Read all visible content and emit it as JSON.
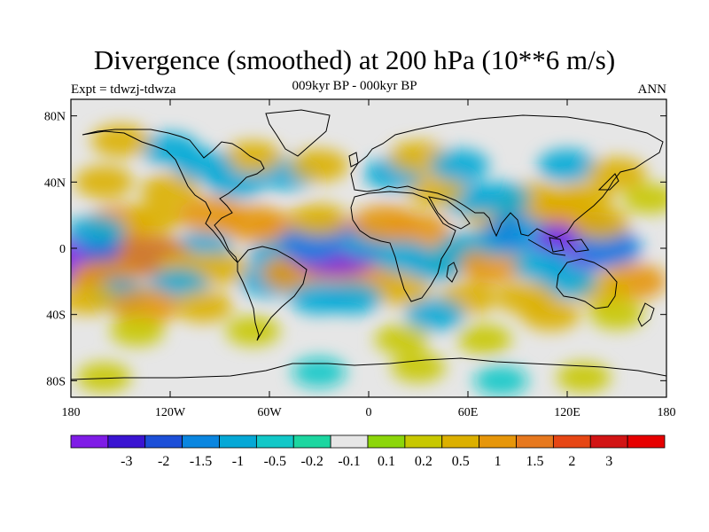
{
  "title": "Divergence (smoothed) at 200 hPa (10**6 m/s)",
  "left_string": "Expt = tdwzj-tdwza",
  "center_string": "009kyr BP - 000kyr BP",
  "right_string": "ANN",
  "map": {
    "projection": "cylindrical-equidistant",
    "lon_range": [
      -180,
      180
    ],
    "lat_range": [
      -90,
      90
    ],
    "background_color": "#e6e6e6",
    "lon_ticks": [
      {
        "value": -180,
        "label": "180"
      },
      {
        "value": -120,
        "label": "120W"
      },
      {
        "value": -60,
        "label": "60W"
      },
      {
        "value": 0,
        "label": "0"
      },
      {
        "value": 60,
        "label": "60E"
      },
      {
        "value": 120,
        "label": "120E"
      },
      {
        "value": 180,
        "label": "180"
      }
    ],
    "lat_ticks": [
      {
        "value": 80,
        "label": "80N"
      },
      {
        "value": 40,
        "label": "40N"
      },
      {
        "value": 0,
        "label": "0"
      },
      {
        "value": -40,
        "label": "40S"
      },
      {
        "value": -80,
        "label": "80S"
      }
    ]
  },
  "colorbar": {
    "colors": [
      "#7f1ce6",
      "#3a14d2",
      "#1c4fd8",
      "#0a86e0",
      "#05a8d6",
      "#12c8c8",
      "#1cd6a0",
      "#e6e6e6",
      "#8cd60a",
      "#c8c800",
      "#dcb000",
      "#e6960a",
      "#e6781e",
      "#e64614",
      "#d21414",
      "#e60000"
    ],
    "labels": [
      "-3",
      "-2",
      "-1.5",
      "-1",
      "-0.5",
      "-0.2",
      "-0.1",
      "0.1",
      "0.2",
      "0.5",
      "1",
      "1.5",
      "2",
      "3"
    ]
  },
  "features": [
    {
      "lon": -170,
      "lat": -8,
      "value": -3
    },
    {
      "lon": -150,
      "lat": -3,
      "value": -1.5
    },
    {
      "lon": -125,
      "lat": -5,
      "value": -1
    },
    {
      "lon": -100,
      "lat": 0,
      "value": -0.5
    },
    {
      "lon": -135,
      "lat": -7,
      "value": -0.5
    },
    {
      "lon": -130,
      "lat": -5,
      "value": 1.5
    },
    {
      "lon": -160,
      "lat": -18,
      "value": 1
    },
    {
      "lon": -110,
      "lat": -12,
      "value": 0.5
    },
    {
      "lon": -90,
      "lat": -12,
      "value": 0.5
    },
    {
      "lon": -150,
      "lat": 15,
      "value": 1
    },
    {
      "lon": -130,
      "lat": 18,
      "value": 0.5
    },
    {
      "lon": -160,
      "lat": 40,
      "value": 0.5
    },
    {
      "lon": -120,
      "lat": 35,
      "value": 0.5
    },
    {
      "lon": -95,
      "lat": 20,
      "value": 1
    },
    {
      "lon": -70,
      "lat": 15,
      "value": 1
    },
    {
      "lon": -50,
      "lat": 10,
      "value": 1
    },
    {
      "lon": -25,
      "lat": 8,
      "value": 0.5
    },
    {
      "lon": -150,
      "lat": -28,
      "value": -0.5
    },
    {
      "lon": -115,
      "lat": -22,
      "value": -0.5
    },
    {
      "lon": -170,
      "lat": -30,
      "value": 0.5
    },
    {
      "lon": -135,
      "lat": -35,
      "value": 1
    },
    {
      "lon": -100,
      "lat": -35,
      "value": 0.5
    },
    {
      "lon": -60,
      "lat": -20,
      "value": -0.5
    },
    {
      "lon": -55,
      "lat": -5,
      "value": -0.5
    },
    {
      "lon": -45,
      "lat": -15,
      "value": 1
    },
    {
      "lon": -20,
      "lat": -12,
      "value": 1
    },
    {
      "lon": 0,
      "lat": -18,
      "value": 1
    },
    {
      "lon": 20,
      "lat": -25,
      "value": 0.5
    },
    {
      "lon": -30,
      "lat": -30,
      "value": -0.5
    },
    {
      "lon": -10,
      "lat": -30,
      "value": -0.5
    },
    {
      "lon": -20,
      "lat": 0,
      "value": -3
    },
    {
      "lon": -35,
      "lat": 3,
      "value": -1
    },
    {
      "lon": 0,
      "lat": 3,
      "value": -0.5
    },
    {
      "lon": -30,
      "lat": 17,
      "value": 0.5
    },
    {
      "lon": 10,
      "lat": 15,
      "value": 1
    },
    {
      "lon": 30,
      "lat": 10,
      "value": 1
    },
    {
      "lon": 50,
      "lat": -5,
      "value": 0.5
    },
    {
      "lon": 20,
      "lat": -5,
      "value": -0.5
    },
    {
      "lon": 40,
      "lat": -10,
      "value": -0.5
    },
    {
      "lon": 60,
      "lat": 0,
      "value": -0.5
    },
    {
      "lon": 75,
      "lat": -10,
      "value": 1
    },
    {
      "lon": 80,
      "lat": 5,
      "value": -0.5
    },
    {
      "lon": 75,
      "lat": 20,
      "value": 0.5
    },
    {
      "lon": 90,
      "lat": 10,
      "value": -1
    },
    {
      "lon": 110,
      "lat": 10,
      "value": -0.5
    },
    {
      "lon": 130,
      "lat": 3,
      "value": -3
    },
    {
      "lon": 145,
      "lat": 0,
      "value": -1
    },
    {
      "lon": 115,
      "lat": 25,
      "value": 1
    },
    {
      "lon": 100,
      "lat": 30,
      "value": 0.5
    },
    {
      "lon": 130,
      "lat": 30,
      "value": 0.5
    },
    {
      "lon": 140,
      "lat": 15,
      "value": 0.5
    },
    {
      "lon": 80,
      "lat": 30,
      "value": -0.5
    },
    {
      "lon": 60,
      "lat": 30,
      "value": -0.5
    },
    {
      "lon": 40,
      "lat": 35,
      "value": 0.5
    },
    {
      "lon": 15,
      "lat": 45,
      "value": -0.5
    },
    {
      "lon": 30,
      "lat": 55,
      "value": 0.5
    },
    {
      "lon": 55,
      "lat": 50,
      "value": -0.5
    },
    {
      "lon": 120,
      "lat": 50,
      "value": -0.5
    },
    {
      "lon": 150,
      "lat": 45,
      "value": 0.5
    },
    {
      "lon": 170,
      "lat": 30,
      "value": 0.2
    },
    {
      "lon": -80,
      "lat": 40,
      "value": -0.5
    },
    {
      "lon": -50,
      "lat": 45,
      "value": -0.5
    },
    {
      "lon": -70,
      "lat": 55,
      "value": 0.5
    },
    {
      "lon": -30,
      "lat": 50,
      "value": 0.5
    },
    {
      "lon": -100,
      "lat": 50,
      "value": -0.5
    },
    {
      "lon": -120,
      "lat": 60,
      "value": -0.5
    },
    {
      "lon": -150,
      "lat": 65,
      "value": 0.5
    },
    {
      "lon": -165,
      "lat": 10,
      "value": -0.5
    },
    {
      "lon": 160,
      "lat": -20,
      "value": 1
    },
    {
      "lon": 140,
      "lat": -25,
      "value": 0.5
    },
    {
      "lon": 120,
      "lat": -20,
      "value": -0.5
    },
    {
      "lon": 105,
      "lat": -10,
      "value": -0.5
    },
    {
      "lon": 95,
      "lat": -30,
      "value": 0.5
    },
    {
      "lon": 60,
      "lat": -30,
      "value": 0.5
    },
    {
      "lon": 40,
      "lat": -40,
      "value": -0.5
    },
    {
      "lon": 150,
      "lat": -40,
      "value": 0.2
    },
    {
      "lon": 110,
      "lat": -40,
      "value": 0.5
    },
    {
      "lon": -140,
      "lat": -50,
      "value": 0.2
    },
    {
      "lon": -70,
      "lat": -50,
      "value": 0.2
    },
    {
      "lon": 20,
      "lat": -55,
      "value": 0.2
    },
    {
      "lon": 70,
      "lat": -55,
      "value": 0.2
    },
    {
      "lon": -160,
      "lat": -78,
      "value": 0.2
    },
    {
      "lon": 30,
      "lat": -72,
      "value": 0.2
    },
    {
      "lon": 130,
      "lat": -78,
      "value": 0.2
    },
    {
      "lon": -30,
      "lat": -75,
      "value": -0.2
    },
    {
      "lon": 80,
      "lat": -80,
      "value": -0.2
    }
  ]
}
